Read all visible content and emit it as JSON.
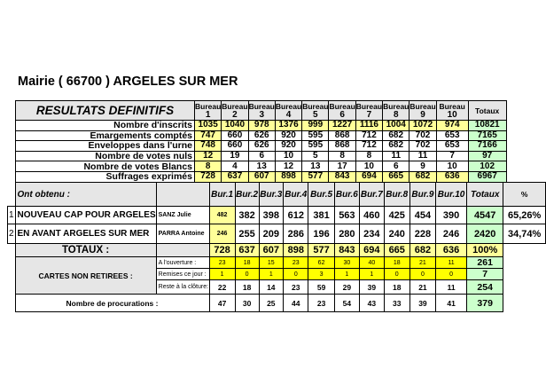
{
  "title": "Mairie ( 66700 ) ARGELES SUR MER",
  "results": {
    "heading": "RESULTATS DEFINITIFS",
    "bureau_label": "Bureau",
    "bureau_numbers": [
      "1",
      "2",
      "3",
      "4",
      "5",
      "6",
      "7",
      "8",
      "9",
      "10"
    ],
    "totals_label": "Totaux",
    "rows": [
      {
        "label": "Nombre d'inscrits",
        "values": [
          "1035",
          "1040",
          "978",
          "1376",
          "999",
          "1227",
          "1116",
          "1004",
          "1072",
          "974"
        ],
        "total": "10821",
        "highlight": true
      },
      {
        "label": "Emargements comptés",
        "values": [
          "747",
          "660",
          "626",
          "920",
          "595",
          "868",
          "712",
          "682",
          "702",
          "653"
        ],
        "total": "7165",
        "highlight": false
      },
      {
        "label": "Enveloppes dans l'urne",
        "values": [
          "748",
          "660",
          "626",
          "920",
          "595",
          "868",
          "712",
          "682",
          "702",
          "653"
        ],
        "total": "7166",
        "highlight": false
      },
      {
        "label": "Nombre de votes nuls",
        "values": [
          "12",
          "19",
          "6",
          "10",
          "5",
          "8",
          "8",
          "11",
          "11",
          "7"
        ],
        "total": "97",
        "highlight": false
      },
      {
        "label": "Nombre de votes Blancs",
        "values": [
          "8",
          "4",
          "13",
          "12",
          "13",
          "17",
          "10",
          "6",
          "9",
          "10"
        ],
        "total": "102",
        "highlight": false
      },
      {
        "label": "Suffrages exprimés",
        "values": [
          "728",
          "637",
          "607",
          "898",
          "577",
          "843",
          "694",
          "665",
          "682",
          "636"
        ],
        "total": "6967",
        "highlight": true
      }
    ]
  },
  "candidates": {
    "header_label": "Ont obtenu :",
    "bur_labels": [
      "Bur.1",
      "Bur.2",
      "Bur.3",
      "Bur.4",
      "Bur.5",
      "Bur.6",
      "Bur.7",
      "Bur.8",
      "Bur.9",
      "Bur.10"
    ],
    "totals_label": "Totaux",
    "percent_label": "%",
    "lists": [
      {
        "number": "1",
        "list": "NOUVEAU CAP POUR ARGELES",
        "head": "SANZ Julie",
        "values": [
          "482",
          "382",
          "398",
          "612",
          "381",
          "563",
          "460",
          "425",
          "454",
          "390"
        ],
        "total": "4547",
        "percent": "65,26%"
      },
      {
        "number": "2",
        "list": "EN AVANT ARGELES SUR MER",
        "head": "PARRA Antoine",
        "values": [
          "246",
          "255",
          "209",
          "286",
          "196",
          "280",
          "234",
          "240",
          "228",
          "246"
        ],
        "total": "2420",
        "percent": "34,74%"
      }
    ],
    "totaux": {
      "label": "TOTAUX :",
      "values": [
        "728",
        "637",
        "607",
        "898",
        "577",
        "843",
        "694",
        "665",
        "682",
        "636"
      ],
      "total": "100%"
    },
    "cartes": {
      "label": "CARTES NON RETIREES :",
      "rows": [
        {
          "label": "A l'ouverture :",
          "values": [
            "23",
            "18",
            "15",
            "23",
            "62",
            "30",
            "40",
            "18",
            "21",
            "11"
          ],
          "total": "261"
        },
        {
          "label": "Remises ce jour :",
          "values": [
            "1",
            "0",
            "1",
            "0",
            "3",
            "1",
            "1",
            "0",
            "0",
            "0"
          ],
          "total": "7"
        },
        {
          "label": "Reste à la clôture:",
          "values": [
            "22",
            "18",
            "14",
            "23",
            "59",
            "29",
            "39",
            "18",
            "21",
            "11"
          ],
          "total": "254"
        }
      ]
    },
    "procurations": {
      "label": "Nombre de procurations :",
      "values": [
        "47",
        "30",
        "25",
        "44",
        "23",
        "54",
        "43",
        "33",
        "39",
        "41"
      ],
      "total": "379"
    }
  },
  "colors": {
    "light_yellow": "#ffff99",
    "yellow": "#ffff00",
    "green": "#ccffcc",
    "grey": "#e6e6e6"
  }
}
